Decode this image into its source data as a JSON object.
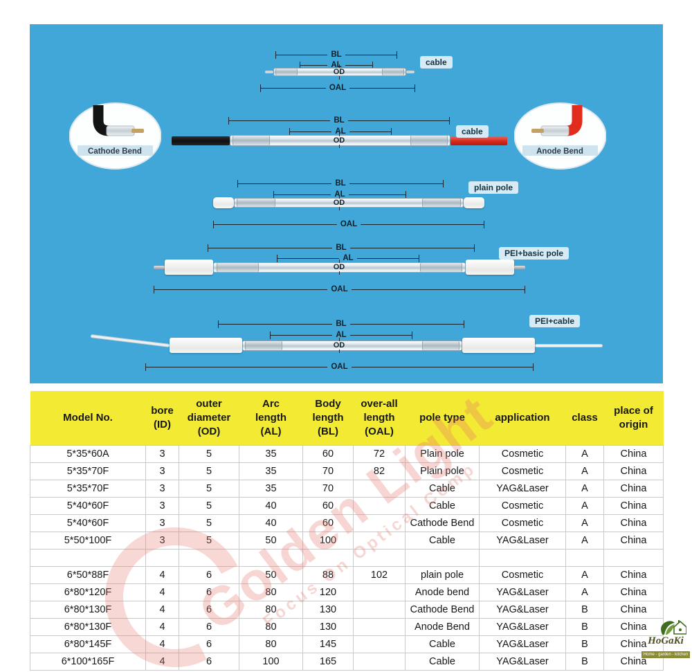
{
  "diagram_panel": {
    "dim_labels": {
      "bl": "BL",
      "al": "AL",
      "od": "OD",
      "oal": "OAL"
    },
    "variant_tags": {
      "d1": "cable",
      "d2": "cable",
      "d3": "plain pole",
      "d4": "PEI+basic pole",
      "d5": "PEI+cable"
    },
    "callouts": {
      "left": {
        "label": "Cathode Bend"
      },
      "right": {
        "label": "Anode Bend"
      }
    },
    "colors": {
      "panel_bg": "#40a7d8",
      "cathode_cable": "#141414",
      "anode_cable": "#e02b1d"
    }
  },
  "table": {
    "columns": [
      "Model No.",
      "bore\n(ID)",
      "outer\ndiameter\n(OD)",
      "Arc\nlength\n(AL)",
      "Body\nlength\n(BL)",
      "over-all\nlength\n(OAL)",
      "pole type",
      "application",
      "class",
      "place of\norigin"
    ],
    "rows": [
      [
        "5*35*60A",
        "3",
        "5",
        "35",
        "60",
        "72",
        "Plain pole",
        "Cosmetic",
        "A",
        "China"
      ],
      [
        "5*35*70F",
        "3",
        "5",
        "35",
        "70",
        "82",
        "Plain pole",
        "Cosmetic",
        "A",
        "China"
      ],
      [
        "5*35*70F",
        "3",
        "5",
        "35",
        "70",
        "",
        "Cable",
        "YAG&Laser",
        "A",
        "China"
      ],
      [
        "5*40*60F",
        "3",
        "5",
        "40",
        "60",
        "",
        "Cable",
        "Cosmetic",
        "A",
        "China"
      ],
      [
        "5*40*60F",
        "3",
        "5",
        "40",
        "60",
        "",
        "Cathode Bend",
        "Cosmetic",
        "A",
        "China"
      ],
      [
        "5*50*100F",
        "3",
        "5",
        "50",
        "100",
        "",
        "Cable",
        "YAG&Laser",
        "A",
        "China"
      ],
      [
        "",
        "",
        "",
        "",
        "",
        "",
        "",
        "",
        "",
        ""
      ],
      [
        "6*50*88F",
        "4",
        "6",
        "50",
        "88",
        "102",
        "plain pole",
        "Cosmetic",
        "A",
        "China"
      ],
      [
        "6*80*120F",
        "4",
        "6",
        "80",
        "120",
        "",
        "Anode bend",
        "YAG&Laser",
        "A",
        "China"
      ],
      [
        "6*80*130F",
        "4",
        "6",
        "80",
        "130",
        "",
        "Cathode Bend",
        "YAG&Laser",
        "B",
        "China"
      ],
      [
        "6*80*130F",
        "4",
        "6",
        "80",
        "130",
        "",
        "Anode Bend",
        "YAG&Laser",
        "B",
        "China"
      ],
      [
        "6*80*145F",
        "4",
        "6",
        "80",
        "145",
        "",
        "Cable",
        "YAG&Laser",
        "B",
        "China"
      ],
      [
        "6*100*165F",
        "4",
        "6",
        "100",
        "165",
        "",
        "Cable",
        "YAG&Laser",
        "B",
        "China"
      ]
    ],
    "colors": {
      "header_bg": "#f2ea33",
      "grid": "#c9c9c9"
    }
  },
  "watermark": {
    "title": "Golden Light",
    "subtitle": "Focus On Optical Comp",
    "color": "#e8766c"
  },
  "logo": {
    "name": "HoGaKi",
    "tagline": "Home - garden - kitchen"
  }
}
